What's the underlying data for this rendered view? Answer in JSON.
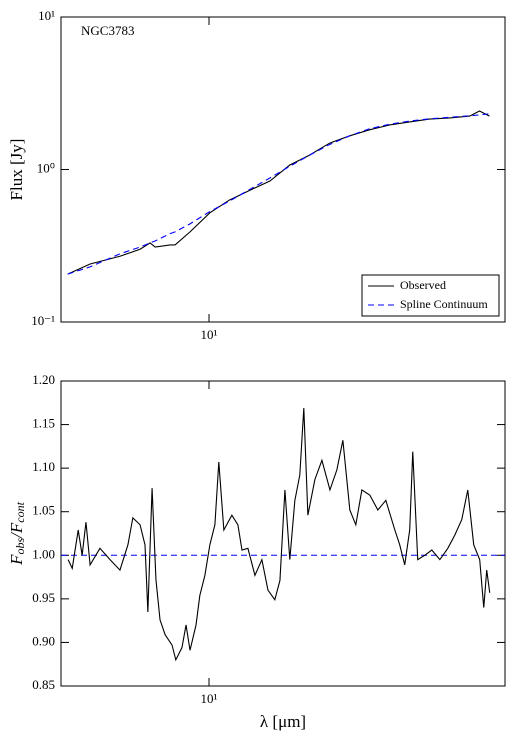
{
  "chart_data": [
    {
      "type": "line",
      "annotation": "NGC3783",
      "ylabel": "Flux [Jy]",
      "xlog": true,
      "ylog": true,
      "xlim": [
        5,
        40
      ],
      "ylim": [
        0.1,
        10
      ],
      "xticks": [
        {
          "value": 10,
          "label": "10¹"
        }
      ],
      "yticks": [
        {
          "value": 0.1,
          "label": "10⁻¹"
        },
        {
          "value": 1,
          "label": "10⁰"
        },
        {
          "value": 10,
          "label": "10¹"
        }
      ],
      "legend": "lower right",
      "x": [
        5.16,
        5.73,
        6.59,
        7.24,
        7.59,
        7.77,
        8.34,
        8.53,
        9.15,
        10.04,
        11.0,
        12.1,
        13.3,
        14.6,
        16.0,
        17.6,
        19.3,
        21.2,
        23.3,
        25.6,
        28.1,
        30.9,
        33.9,
        35.5,
        37.2
      ],
      "series": [
        {
          "name": "Observed",
          "color": "#000000",
          "dash": false,
          "values": [
            0.206,
            0.24,
            0.27,
            0.3,
            0.33,
            0.31,
            0.32,
            0.32,
            0.39,
            0.52,
            0.63,
            0.73,
            0.84,
            1.07,
            1.24,
            1.49,
            1.66,
            1.82,
            1.96,
            2.05,
            2.14,
            2.18,
            2.24,
            2.42,
            2.24
          ]
        },
        {
          "name": "Spline Continuum",
          "color": "#0000ff",
          "dash": true,
          "values": [
            0.206,
            0.23,
            0.28,
            0.31,
            0.33,
            0.34,
            0.38,
            0.39,
            0.44,
            0.53,
            0.62,
            0.74,
            0.88,
            1.05,
            1.24,
            1.46,
            1.66,
            1.85,
            1.98,
            2.08,
            2.15,
            2.2,
            2.25,
            2.28,
            2.32
          ]
        }
      ]
    },
    {
      "type": "line",
      "xlabel": "λ [μm]",
      "ylabel": [
        "F",
        "obs",
        "/F",
        "cont"
      ],
      "xlog": true,
      "ylog": false,
      "xlim": [
        5,
        40
      ],
      "ylim": [
        0.85,
        1.2
      ],
      "xticks": [
        {
          "value": 10,
          "label": "10¹"
        }
      ],
      "yticks": [
        0.85,
        {
          "value": 0.9,
          "label": "0.90"
        },
        0.95,
        {
          "value": 1.0,
          "label": "1.00"
        },
        1.05,
        {
          "value": 1.1,
          "label": "1.10"
        },
        1.15,
        {
          "value": 1.2,
          "label": "1.20"
        }
      ],
      "reference_line": {
        "value": 1.0,
        "color": "#0000ff"
      },
      "x": [
        5.17,
        5.27,
        5.42,
        5.52,
        5.62,
        5.73,
        6.0,
        6.29,
        6.59,
        6.84,
        7.0,
        7.24,
        7.41,
        7.51,
        7.66,
        7.8,
        7.95,
        8.14,
        8.41,
        8.56,
        8.81,
        8.98,
        9.15,
        9.41,
        9.58,
        9.81,
        10.04,
        10.28,
        10.47,
        10.72,
        11.13,
        11.45,
        11.67,
        12.0,
        12.4,
        12.81,
        13.18,
        13.61,
        13.94,
        14.27,
        14.6,
        14.95,
        15.3,
        15.59,
        15.89,
        16.42,
        16.97,
        17.62,
        18.2,
        18.72,
        19.34,
        19.89,
        20.46,
        21.24,
        22.05,
        22.89,
        23.88,
        24.43,
        25.01,
        25.6,
        25.97,
        26.58,
        27.47,
        28.39,
        29.48,
        30.6,
        31.61,
        32.67,
        33.6,
        34.55,
        35.53,
        36.21,
        36.72,
        37.24
      ],
      "series": [
        {
          "name": "Observed",
          "color": "#000000",
          "dash": false,
          "values": [
            0.995,
            0.985,
            1.029,
            1.0,
            1.038,
            0.989,
            1.008,
            0.995,
            0.983,
            1.012,
            1.043,
            1.035,
            1.012,
            0.935,
            1.077,
            0.972,
            0.926,
            0.909,
            0.897,
            0.88,
            0.894,
            0.92,
            0.891,
            0.92,
            0.954,
            0.977,
            1.012,
            1.035,
            1.107,
            1.029,
            1.046,
            1.035,
            1.006,
            1.008,
            0.977,
            0.995,
            0.96,
            0.949,
            0.971,
            1.075,
            0.995,
            1.063,
            1.092,
            1.169,
            1.046,
            1.087,
            1.109,
            1.075,
            1.098,
            1.132,
            1.052,
            1.035,
            1.075,
            1.069,
            1.052,
            1.063,
            1.029,
            1.012,
            0.989,
            1.029,
            1.119,
            0.995,
            1.0,
            1.006,
            0.995,
            1.008,
            1.023,
            1.041,
            1.075,
            1.012,
            0.995,
            0.94,
            0.983,
            0.957
          ]
        }
      ]
    }
  ]
}
